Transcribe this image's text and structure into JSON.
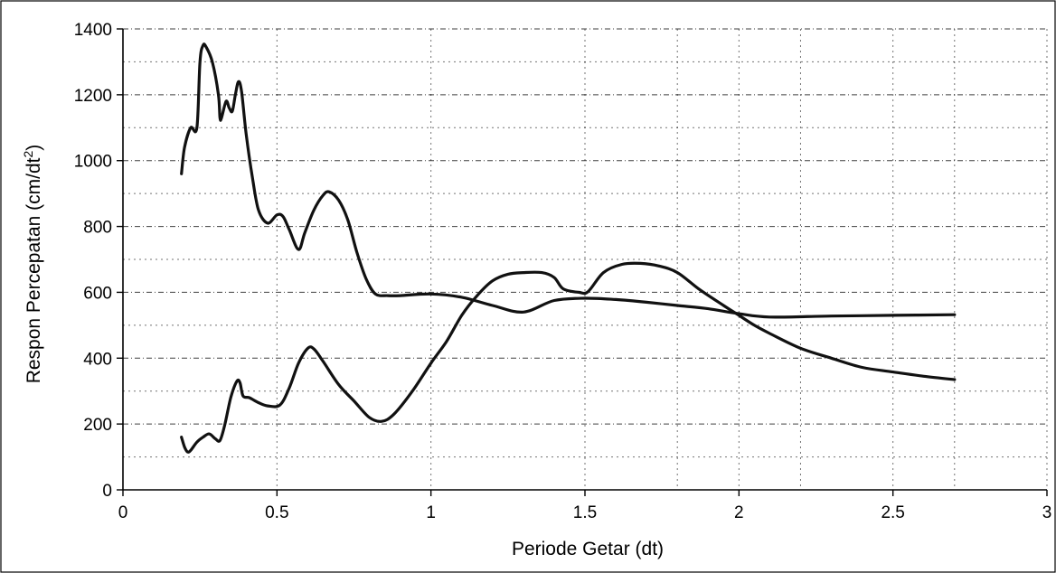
{
  "chart_data": {
    "type": "line",
    "title": "",
    "xlabel": "Periode Getar (dt)",
    "ylabel_main": "Respon Percepatan (cm/dt",
    "ylabel_sup": "2",
    "ylabel_close": ")",
    "xlim": [
      0,
      3
    ],
    "ylim": [
      0,
      1400
    ],
    "x_ticks": [
      0,
      0.5,
      1,
      1.5,
      2,
      2.5,
      3
    ],
    "x_tick_labels": [
      "0",
      "0.5",
      "1",
      "1.5",
      "2",
      "2.5",
      "3"
    ],
    "y_ticks": [
      0,
      200,
      400,
      600,
      800,
      1000,
      1200,
      1400
    ],
    "y_tick_labels": [
      "0",
      "200",
      "400",
      "600",
      "800",
      "1000",
      "1200",
      "1400"
    ],
    "y_grid_minor": [
      100,
      300,
      500,
      700,
      900,
      1100,
      1300
    ],
    "x_grid": [
      0.5,
      1,
      1.5,
      1.8,
      2,
      2.2,
      2.5,
      2.7,
      3
    ],
    "grid": true,
    "legend": "none",
    "series": [
      {
        "values_xy": [
          [
            0.19,
            960
          ],
          [
            0.2,
            1040
          ],
          [
            0.22,
            1100
          ],
          [
            0.24,
            1100
          ],
          [
            0.25,
            1300
          ],
          [
            0.26,
            1350
          ],
          [
            0.27,
            1345
          ],
          [
            0.29,
            1300
          ],
          [
            0.31,
            1200
          ],
          [
            0.315,
            1130
          ],
          [
            0.32,
            1130
          ],
          [
            0.335,
            1180
          ],
          [
            0.345,
            1160
          ],
          [
            0.355,
            1150
          ],
          [
            0.365,
            1200
          ],
          [
            0.375,
            1240
          ],
          [
            0.385,
            1210
          ],
          [
            0.4,
            1080
          ],
          [
            0.42,
            950
          ],
          [
            0.44,
            850
          ],
          [
            0.47,
            810
          ],
          [
            0.5,
            835
          ],
          [
            0.52,
            830
          ],
          [
            0.54,
            790
          ],
          [
            0.57,
            730
          ],
          [
            0.59,
            780
          ],
          [
            0.62,
            850
          ],
          [
            0.65,
            895
          ],
          [
            0.67,
            905
          ],
          [
            0.7,
            880
          ],
          [
            0.73,
            820
          ],
          [
            0.76,
            720
          ],
          [
            0.79,
            640
          ],
          [
            0.82,
            595
          ],
          [
            0.86,
            590
          ],
          [
            0.9,
            590
          ],
          [
            1.0,
            595
          ],
          [
            1.1,
            585
          ],
          [
            1.2,
            560
          ],
          [
            1.3,
            540
          ],
          [
            1.4,
            575
          ],
          [
            1.5,
            582
          ],
          [
            1.6,
            578
          ],
          [
            1.7,
            570
          ],
          [
            1.8,
            560
          ],
          [
            1.9,
            550
          ],
          [
            2.0,
            535
          ],
          [
            2.1,
            525
          ],
          [
            2.3,
            528
          ],
          [
            2.5,
            530
          ],
          [
            2.7,
            532
          ]
        ]
      },
      {
        "values_xy": [
          [
            0.19,
            160
          ],
          [
            0.2,
            130
          ],
          [
            0.21,
            115
          ],
          [
            0.22,
            120
          ],
          [
            0.24,
            145
          ],
          [
            0.26,
            160
          ],
          [
            0.28,
            170
          ],
          [
            0.3,
            155
          ],
          [
            0.315,
            150
          ],
          [
            0.33,
            195
          ],
          [
            0.35,
            280
          ],
          [
            0.37,
            330
          ],
          [
            0.38,
            325
          ],
          [
            0.39,
            285
          ],
          [
            0.41,
            280
          ],
          [
            0.44,
            265
          ],
          [
            0.47,
            255
          ],
          [
            0.51,
            258
          ],
          [
            0.54,
            310
          ],
          [
            0.57,
            385
          ],
          [
            0.6,
            430
          ],
          [
            0.62,
            428
          ],
          [
            0.65,
            390
          ],
          [
            0.7,
            320
          ],
          [
            0.75,
            270
          ],
          [
            0.8,
            220
          ],
          [
            0.84,
            208
          ],
          [
            0.88,
            230
          ],
          [
            0.94,
            300
          ],
          [
            1.0,
            385
          ],
          [
            1.05,
            450
          ],
          [
            1.1,
            530
          ],
          [
            1.15,
            590
          ],
          [
            1.2,
            635
          ],
          [
            1.25,
            655
          ],
          [
            1.3,
            660
          ],
          [
            1.36,
            660
          ],
          [
            1.4,
            645
          ],
          [
            1.43,
            610
          ],
          [
            1.48,
            600
          ],
          [
            1.51,
            602
          ],
          [
            1.56,
            660
          ],
          [
            1.62,
            685
          ],
          [
            1.68,
            688
          ],
          [
            1.74,
            680
          ],
          [
            1.8,
            660
          ],
          [
            1.87,
            610
          ],
          [
            1.95,
            560
          ],
          [
            2.0,
            530
          ],
          [
            2.05,
            500
          ],
          [
            2.1,
            475
          ],
          [
            2.2,
            430
          ],
          [
            2.3,
            400
          ],
          [
            2.4,
            372
          ],
          [
            2.5,
            358
          ],
          [
            2.6,
            345
          ],
          [
            2.7,
            335
          ]
        ]
      }
    ]
  }
}
